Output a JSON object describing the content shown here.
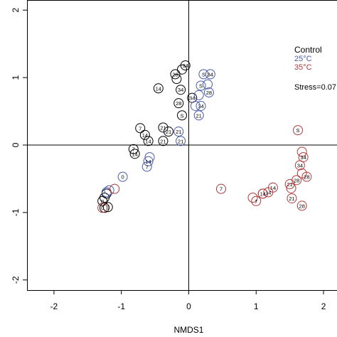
{
  "chart_data": {
    "type": "scatter",
    "title": "",
    "xlabel": "NMDS1",
    "ylabel": "",
    "xlim": [
      -2.4,
      2.2
    ],
    "ylim": [
      -2.15,
      2.15
    ],
    "x_ticks": [
      -2,
      -1,
      0,
      1,
      2
    ],
    "y_ticks": [
      -2,
      -1,
      0,
      1,
      2
    ],
    "x_tick_labels": [
      "-2",
      "-1",
      "0",
      "1",
      "2"
    ],
    "y_tick_labels": [
      "-2",
      "-1",
      "0",
      "1",
      "2"
    ],
    "grid": false,
    "reference_lines": {
      "x": 0,
      "y": 0
    },
    "legend": {
      "placement": "top-right",
      "entries": [
        {
          "label": "Control",
          "color": "#000000"
        },
        {
          "label": "25°C",
          "color": "#4a5bab"
        },
        {
          "label": "35°C",
          "color": "#b03a3a"
        }
      ]
    },
    "stress_label": "Stress=0.07",
    "point_label_note": "Circle labels are sampling days: 0, 7, 14, 21, 28, 34, S",
    "series": [
      {
        "name": "Control",
        "color": "#000000",
        "points": [
          {
            "x": -0.05,
            "y": 1.18,
            "label": "34"
          },
          {
            "x": -0.1,
            "y": 1.12,
            "label": ""
          },
          {
            "x": -0.2,
            "y": 1.05,
            "label": "28"
          },
          {
            "x": -0.18,
            "y": 0.98,
            "label": ""
          },
          {
            "x": -0.45,
            "y": 0.84,
            "label": "14"
          },
          {
            "x": -0.12,
            "y": 0.82,
            "label": "34"
          },
          {
            "x": 0.05,
            "y": 0.7,
            "label": "34"
          },
          {
            "x": -0.15,
            "y": 0.62,
            "label": "28"
          },
          {
            "x": -0.1,
            "y": 0.44,
            "label": "S"
          },
          {
            "x": -0.38,
            "y": 0.26,
            "label": "21"
          },
          {
            "x": -0.72,
            "y": 0.25,
            "label": "7"
          },
          {
            "x": -0.3,
            "y": 0.2,
            "label": "21"
          },
          {
            "x": -0.65,
            "y": 0.15,
            "label": "14"
          },
          {
            "x": -0.6,
            "y": 0.06,
            "label": "14"
          },
          {
            "x": -0.38,
            "y": 0.06,
            "label": "21"
          },
          {
            "x": -0.82,
            "y": -0.06,
            "label": "7"
          },
          {
            "x": -0.8,
            "y": -0.13,
            "label": "14"
          },
          {
            "x": -1.22,
            "y": -0.72,
            "label": ""
          },
          {
            "x": -1.25,
            "y": -0.78,
            "label": ""
          },
          {
            "x": -1.28,
            "y": -0.83,
            "label": "0"
          },
          {
            "x": -1.2,
            "y": -0.92,
            "label": "0"
          },
          {
            "x": -1.25,
            "y": -0.93,
            "label": ""
          }
        ]
      },
      {
        "name": "25°C",
        "color": "#4a5bab",
        "points": [
          {
            "x": 0.22,
            "y": 1.05,
            "label": "S"
          },
          {
            "x": 0.32,
            "y": 1.05,
            "label": "34"
          },
          {
            "x": 0.18,
            "y": 0.88,
            "label": "S"
          },
          {
            "x": 0.28,
            "y": 0.9,
            "label": ""
          },
          {
            "x": 0.3,
            "y": 0.78,
            "label": "28"
          },
          {
            "x": 0.15,
            "y": 0.74,
            "label": ""
          },
          {
            "x": 0.18,
            "y": 0.58,
            "label": "34"
          },
          {
            "x": 0.1,
            "y": 0.58,
            "label": ""
          },
          {
            "x": 0.15,
            "y": 0.44,
            "label": "21"
          },
          {
            "x": -0.15,
            "y": 0.2,
            "label": "21"
          },
          {
            "x": -0.12,
            "y": 0.06,
            "label": "21"
          },
          {
            "x": -0.58,
            "y": -0.18,
            "label": ""
          },
          {
            "x": -0.6,
            "y": -0.24,
            "label": "14"
          },
          {
            "x": -0.62,
            "y": -0.32,
            "label": "7"
          },
          {
            "x": -0.98,
            "y": -0.47,
            "label": "0"
          },
          {
            "x": -1.18,
            "y": -0.67,
            "label": ""
          },
          {
            "x": -1.22,
            "y": -0.7,
            "label": ""
          }
        ]
      },
      {
        "name": "35°C",
        "color": "#b03a3a",
        "points": [
          {
            "x": 1.62,
            "y": 0.22,
            "label": "S"
          },
          {
            "x": 1.68,
            "y": -0.1,
            "label": ""
          },
          {
            "x": 1.7,
            "y": -0.18,
            "label": "34"
          },
          {
            "x": 1.65,
            "y": -0.3,
            "label": "34"
          },
          {
            "x": 1.68,
            "y": -0.42,
            "label": ""
          },
          {
            "x": 1.75,
            "y": -0.47,
            "label": "28"
          },
          {
            "x": 1.6,
            "y": -0.52,
            "label": "28"
          },
          {
            "x": 1.5,
            "y": -0.58,
            "label": "21"
          },
          {
            "x": 1.52,
            "y": -0.64,
            "label": ""
          },
          {
            "x": 1.25,
            "y": -0.63,
            "label": "14"
          },
          {
            "x": 1.18,
            "y": -0.7,
            "label": "14"
          },
          {
            "x": 1.1,
            "y": -0.72,
            "label": ""
          },
          {
            "x": 1.1,
            "y": -0.72,
            "label": "14"
          },
          {
            "x": 0.95,
            "y": -0.78,
            "label": ""
          },
          {
            "x": 1.0,
            "y": -0.83,
            "label": "7"
          },
          {
            "x": 0.48,
            "y": -0.65,
            "label": "7"
          },
          {
            "x": 1.53,
            "y": -0.79,
            "label": "21"
          },
          {
            "x": 1.68,
            "y": -0.9,
            "label": "28"
          },
          {
            "x": -1.1,
            "y": -0.65,
            "label": ""
          },
          {
            "x": -1.28,
            "y": -0.93,
            "label": "0"
          }
        ]
      }
    ]
  }
}
